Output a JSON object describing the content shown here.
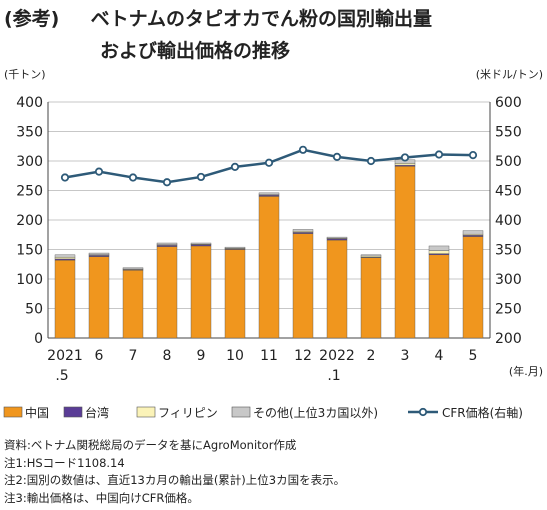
{
  "header": {
    "prefix": "(参考)",
    "title_line1": "ベトナムのタピオカでん粉の国別輸出量",
    "title_line2": "および輸出価格の推移"
  },
  "chart_data": {
    "type": "bar",
    "stacked": true,
    "y_left_label": "(千トン)",
    "y_right_label": "(米ドル/トン)",
    "x_unit_label": "(年.月)",
    "ylim_left": [
      0,
      400
    ],
    "ylim_right": [
      200,
      600
    ],
    "yticks_left": [
      "0",
      "50",
      "100",
      "150",
      "200",
      "250",
      "300",
      "350",
      "400"
    ],
    "yticks_right": [
      "200",
      "250",
      "300",
      "350",
      "400",
      "450",
      "500",
      "550",
      "600"
    ],
    "grid": true,
    "legend_position": "bottom",
    "categories": [
      "2021.5",
      "6",
      "7",
      "8",
      "9",
      "10",
      "11",
      "12",
      "2022.1",
      "2",
      "3",
      "4",
      "5"
    ],
    "x_tick_labels": [
      [
        "2021",
        ".5"
      ],
      [
        "6"
      ],
      [
        "7"
      ],
      [
        "8"
      ],
      [
        "9"
      ],
      [
        "10"
      ],
      [
        "11"
      ],
      [
        "12"
      ],
      [
        "2022",
        ".1"
      ],
      [
        "2"
      ],
      [
        "3"
      ],
      [
        "4"
      ],
      [
        "5"
      ]
    ],
    "series": [
      {
        "name": "中国",
        "color": "#f0961e",
        "values": [
          132,
          138,
          115,
          155,
          156,
          150,
          240,
          177,
          166,
          136,
          291,
          141,
          172
        ]
      },
      {
        "name": "台湾",
        "color": "#5a3c96",
        "values": [
          2,
          2,
          1,
          2,
          2,
          1,
          2,
          2,
          2,
          1,
          2,
          2,
          2
        ]
      },
      {
        "name": "フィリピン",
        "color": "#fbf3b8",
        "values": [
          3,
          1,
          1,
          1,
          1,
          1,
          1,
          2,
          1,
          2,
          3,
          5,
          2
        ]
      },
      {
        "name": "その他(上位3カ国以外)",
        "color": "#c8c8c8",
        "values": [
          4,
          3,
          2,
          3,
          2,
          2,
          3,
          3,
          2,
          2,
          6,
          8,
          6
        ]
      }
    ],
    "line_series": {
      "name": "CFR価格(右軸)",
      "color": "#2e5a78",
      "values": [
        472,
        482,
        472,
        464,
        473,
        490,
        497,
        519,
        507,
        500,
        506,
        511,
        510
      ]
    }
  },
  "notes": [
    "資料:ベトナム関税総局のデータを基にAgroMonitor作成",
    "注1:HSコード1108.14",
    "注2:国別の数値は、直近13カ月の輸出量(累計)上位3カ国を表示。",
    "注3:輸出価格は、中国向けCFR価格。"
  ]
}
